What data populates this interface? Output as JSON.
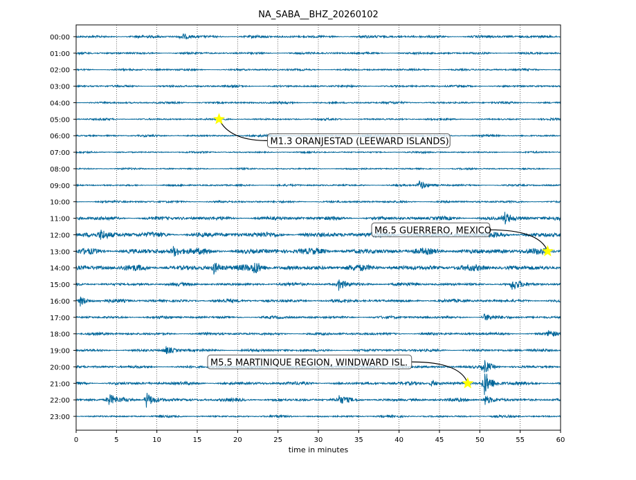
{
  "chart_data": {
    "type": "line",
    "subtype": "helicorder",
    "title": "NA_SABA__BHZ_20260102",
    "xlabel": "time in minutes",
    "ylabel": "",
    "xlim": [
      0,
      60
    ],
    "xticks": [
      "0",
      "5",
      "10",
      "15",
      "20",
      "25",
      "30",
      "35",
      "40",
      "45",
      "50",
      "55",
      "60"
    ],
    "grid": "vertical dotted",
    "trace_color": "#00669a",
    "rows": [
      "00:00",
      "01:00",
      "02:00",
      "03:00",
      "04:00",
      "05:00",
      "06:00",
      "07:00",
      "08:00",
      "09:00",
      "10:00",
      "11:00",
      "12:00",
      "13:00",
      "14:00",
      "15:00",
      "16:00",
      "17:00",
      "18:00",
      "19:00",
      "20:00",
      "21:00",
      "22:00",
      "23:00"
    ],
    "noise_level": [
      0.25,
      0.2,
      0.18,
      0.2,
      0.2,
      0.18,
      0.18,
      0.15,
      0.15,
      0.18,
      0.2,
      0.35,
      0.5,
      0.55,
      0.55,
      0.3,
      0.3,
      0.25,
      0.25,
      0.25,
      0.25,
      0.3,
      0.3,
      0.2
    ],
    "bursts": [
      {
        "row": 0,
        "minute": 13,
        "amp": 0.5
      },
      {
        "row": 9,
        "minute": 42.5,
        "amp": 0.8
      },
      {
        "row": 11,
        "minute": 53,
        "amp": 1.0
      },
      {
        "row": 12,
        "minute": 3,
        "amp": 0.8
      },
      {
        "row": 13,
        "minute": 12,
        "amp": 0.8
      },
      {
        "row": 14,
        "minute": 17,
        "amp": 0.9
      },
      {
        "row": 14,
        "minute": 22,
        "amp": 0.9
      },
      {
        "row": 15,
        "minute": 32.5,
        "amp": 0.9
      },
      {
        "row": 15,
        "minute": 54,
        "amp": 0.8
      },
      {
        "row": 16,
        "minute": 0.5,
        "amp": 0.8
      },
      {
        "row": 17,
        "minute": 50.5,
        "amp": 0.6
      },
      {
        "row": 18,
        "minute": 58.5,
        "amp": 0.6
      },
      {
        "row": 19,
        "minute": 11,
        "amp": 0.7
      },
      {
        "row": 20,
        "minute": 50.5,
        "amp": 1.1
      },
      {
        "row": 21,
        "minute": 44,
        "amp": 0.6
      },
      {
        "row": 21,
        "minute": 50.5,
        "amp": 2.2
      },
      {
        "row": 22,
        "minute": 4,
        "amp": 0.9
      },
      {
        "row": 22,
        "minute": 8.7,
        "amp": 1.3
      },
      {
        "row": 22,
        "minute": 32.5,
        "amp": 0.6
      },
      {
        "row": 22,
        "minute": 50.5,
        "amp": 1.0
      }
    ],
    "events": [
      {
        "label": "M1.3 ORANJESTAD (LEEWARD ISLANDS)",
        "row": 5,
        "minute": 17.7,
        "star_color": "#ffff00"
      },
      {
        "label": "M6.5 GUERRERO, MEXICO",
        "row": 13,
        "minute": 58.4,
        "star_color": "#ffff00"
      },
      {
        "label": "M5.5 MARTINIQUE REGION, WINDWARD ISL.",
        "row": 21,
        "minute": 48.5,
        "star_color": "#ffff00"
      }
    ]
  }
}
